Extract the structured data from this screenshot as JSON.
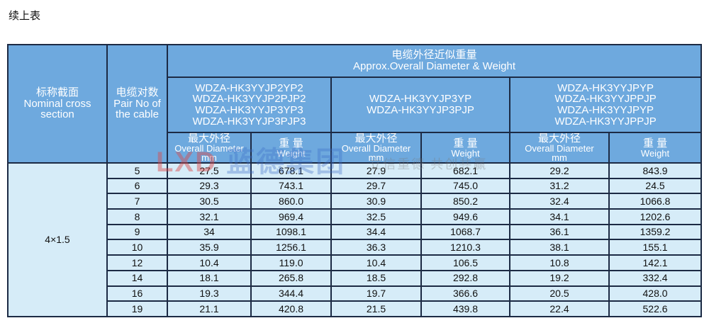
{
  "caption": "续上表",
  "header": {
    "section_cn": "标称截面",
    "section_en": "Nominal cross section",
    "pair_cn": "电缆对数",
    "pair_en": "Pair No of the cable",
    "group_cn": "电缆外径近似重量",
    "group_en": "Approx.Overall Diameter & Weight",
    "models": [
      [
        "WDZA-HK3YYJP2YP2",
        "WDZA-HK3YYJP2PJP2",
        "WDZA-HK3YYJP3YP3",
        "WDZA-HK3YYJP3PJP3"
      ],
      [
        "WDZA-HK3YYJP3YP",
        "WDZA-HK3YYJP3PJP"
      ],
      [
        "WDZA-HK3YYJPYP",
        "WDZA-HK3YYJPPJP",
        "WDZA-HK3YYJPYP",
        "WDZA-HK3YYJPPJP"
      ]
    ],
    "diameter_cn": "最大外径",
    "diameter_en": "Overall Diameter",
    "diameter_unit": "mm",
    "weight_cn": "重 量",
    "weight_en": "Weight"
  },
  "section_value": "4×1.5",
  "rows": [
    [
      "5",
      "27.5",
      "678.1",
      "27.9",
      "682.1",
      "29.2",
      "843.9"
    ],
    [
      "6",
      "29.3",
      "743.1",
      "29.7",
      "745.0",
      "31.2",
      "24.5"
    ],
    [
      "7",
      "30.5",
      "860.0",
      "30.9",
      "850.2",
      "32.4",
      "1066.8"
    ],
    [
      "8",
      "32.1",
      "969.4",
      "32.5",
      "949.6",
      "34.1",
      "1202.6"
    ],
    [
      "9",
      "34",
      "1098.1",
      "34.4",
      "1068.7",
      "36.1",
      "1359.2"
    ],
    [
      "10",
      "35.9",
      "1256.1",
      "36.3",
      "1210.3",
      "38.1",
      "155.1"
    ],
    [
      "12",
      "10.4",
      "119.0",
      "10.4",
      "106.5",
      "10.8",
      "142.1"
    ],
    [
      "14",
      "18.1",
      "265.8",
      "18.5",
      "292.8",
      "19.2",
      "332.4"
    ],
    [
      "16",
      "19.3",
      "344.4",
      "19.7",
      "366.6",
      "20.5",
      "428.0"
    ],
    [
      "19",
      "21.1",
      "420.8",
      "21.5",
      "439.8",
      "22.4",
      "522.6"
    ]
  ],
  "watermark": {
    "logo": "LXD",
    "name": "蓝德集团",
    "slogan": "立信重德 共创共赢"
  },
  "colors": {
    "header": "#6ea9de",
    "body": "#d6ecf8",
    "border": "#1c2a44"
  }
}
